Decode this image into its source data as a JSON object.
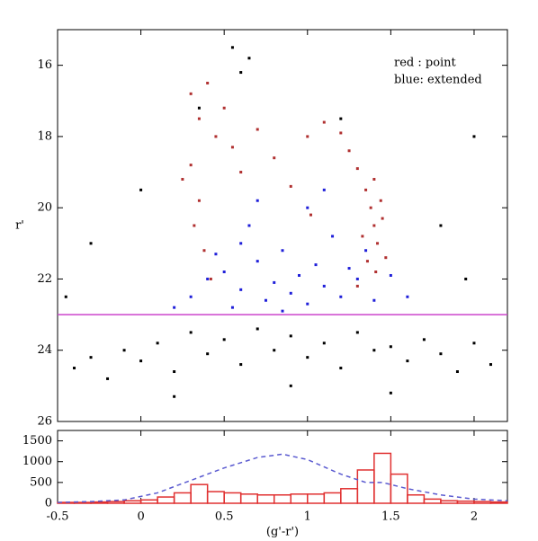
{
  "chart_data": [
    {
      "type": "scatter",
      "y_label": "r'",
      "xlim": [
        -0.5,
        2.2
      ],
      "xticks": [
        -0.5,
        0,
        0.5,
        1,
        1.5,
        2
      ],
      "ylim": [
        15,
        26
      ],
      "yticks": [
        16,
        18,
        20,
        22,
        24,
        26
      ],
      "y_inverted": true,
      "hline": {
        "value": 23,
        "color": "#cc44cc"
      },
      "series": [
        {
          "color": "#000000",
          "x": [
            -0.4,
            -0.3,
            -0.2,
            -0.1,
            0,
            0.1,
            0.2,
            0.3,
            0.4,
            0.5,
            0.6,
            0.7,
            0.8,
            0.9,
            1.0,
            1.1,
            1.2,
            1.3,
            1.4,
            1.5,
            1.6,
            1.7,
            1.8,
            1.9,
            2.0,
            2.1,
            0.55,
            0.6,
            0.65,
            -0.3,
            0.0,
            1.8,
            2.0,
            1.2,
            0.2,
            0.9,
            1.5,
            -0.45,
            1.95,
            0.35
          ],
          "values": [
            24.5,
            24.2,
            24.8,
            24.0,
            24.3,
            23.8,
            24.6,
            23.5,
            24.1,
            23.7,
            24.4,
            23.4,
            24.0,
            23.6,
            24.2,
            23.8,
            24.5,
            23.5,
            24.0,
            23.9,
            24.3,
            23.7,
            24.1,
            24.6,
            23.8,
            24.4,
            15.5,
            16.2,
            15.8,
            21,
            19.5,
            20.5,
            18,
            17.5,
            25.3,
            25.0,
            25.2,
            22.5,
            22,
            17.2
          ]
        },
        {
          "name": "blue: extended",
          "color": "#1f1fd9",
          "x": [
            0.3,
            0.4,
            0.5,
            0.6,
            0.7,
            0.75,
            0.8,
            0.85,
            0.9,
            0.95,
            1.0,
            1.05,
            1.1,
            1.15,
            1.2,
            1.25,
            1.3,
            1.4,
            1.5,
            0.55,
            0.65,
            1.0,
            0.2,
            1.6,
            0.45,
            0.7,
            0.85,
            1.1,
            0.6,
            1.35
          ],
          "values": [
            22.5,
            22.0,
            21.8,
            22.3,
            21.5,
            22.6,
            22.1,
            21.2,
            22.4,
            21.9,
            22.7,
            21.6,
            22.2,
            20.8,
            22.5,
            21.7,
            22.0,
            22.6,
            21.9,
            22.8,
            20.5,
            20.0,
            22.8,
            22.5,
            21.3,
            19.8,
            22.9,
            19.5,
            21.0,
            21.2
          ]
        },
        {
          "name": "red : point",
          "color": "#b03030",
          "x": [
            0.3,
            0.35,
            0.4,
            0.45,
            0.3,
            0.35,
            0.32,
            0.38,
            0.5,
            0.55,
            0.6,
            0.7,
            0.8,
            0.9,
            1.0,
            1.1,
            1.2,
            1.25,
            1.3,
            1.35,
            1.38,
            1.4,
            1.42,
            1.36,
            1.44,
            1.4,
            1.45,
            1.33,
            1.41,
            1.47,
            1.3,
            0.25,
            1.02,
            0.42
          ],
          "values": [
            16.8,
            17.5,
            16.5,
            18.0,
            18.8,
            19.8,
            20.5,
            21.2,
            17.2,
            18.3,
            19.0,
            17.8,
            18.6,
            19.4,
            18.0,
            17.6,
            17.9,
            18.4,
            18.9,
            19.5,
            20.0,
            20.5,
            21.0,
            21.5,
            19.8,
            19.2,
            20.3,
            20.8,
            21.8,
            21.4,
            22.2,
            19.2,
            20.2,
            22.0
          ]
        }
      ]
    },
    {
      "type": "histogram",
      "x_label": "(g'-r')",
      "xlim": [
        -0.5,
        2.2
      ],
      "xticks": [
        -0.5,
        0,
        0.5,
        1,
        1.5,
        2
      ],
      "ylim": [
        0,
        1750
      ],
      "yticks": [
        0,
        500,
        1000,
        1500
      ],
      "color": "#e03030",
      "bins": [
        -0.5,
        -0.4,
        -0.3,
        -0.2,
        -0.1,
        0,
        0.1,
        0.2,
        0.3,
        0.4,
        0.5,
        0.6,
        0.7,
        0.8,
        0.9,
        1.0,
        1.1,
        1.2,
        1.3,
        1.4,
        1.5,
        1.6,
        1.7,
        1.8,
        1.9,
        2.0,
        2.1,
        2.2
      ],
      "values": [
        20,
        20,
        30,
        40,
        60,
        80,
        150,
        250,
        450,
        280,
        250,
        220,
        200,
        200,
        220,
        220,
        250,
        350,
        800,
        1200,
        700,
        200,
        100,
        60,
        50,
        40,
        30
      ],
      "series": [
        {
          "color": "#5a5ad0",
          "linestyle": "dashed",
          "x": [
            -0.5,
            -0.3,
            -0.1,
            0.1,
            0.3,
            0.5,
            0.7,
            0.85,
            1.0,
            1.2,
            1.35,
            1.45,
            1.6,
            1.8,
            2.0,
            2.2
          ],
          "values": [
            20,
            40,
            80,
            250,
            550,
            850,
            1100,
            1180,
            1050,
            700,
            500,
            500,
            350,
            200,
            100,
            60
          ]
        }
      ]
    }
  ]
}
